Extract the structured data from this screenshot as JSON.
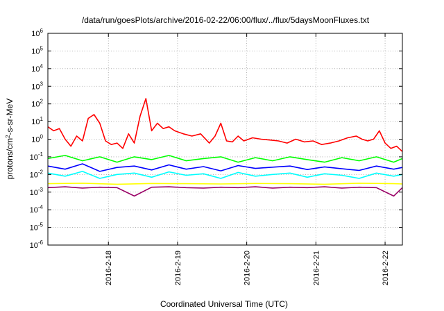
{
  "chart_data": {
    "type": "line",
    "title": "/data/run/goesPlots/archive/2016-02-22/06:00/flux/../flux/5daysMoonFluxes.txt",
    "xlabel": "Coordinated Universal Time (UTC)",
    "ylabel_parts": [
      "protons/cm",
      "2",
      "-s-sr-MeV"
    ],
    "y_scale": "log",
    "ylim": [
      1e-06,
      1000000.0
    ],
    "y_ticks": [
      {
        "base": "10",
        "exp": "-6",
        "value": 1e-06
      },
      {
        "base": "10",
        "exp": "-5",
        "value": 1e-05
      },
      {
        "base": "10",
        "exp": "-4",
        "value": 0.0001
      },
      {
        "base": "10",
        "exp": "-3",
        "value": 0.001
      },
      {
        "base": "10",
        "exp": "-2",
        "value": 0.01
      },
      {
        "base": "10",
        "exp": "-1",
        "value": 0.1
      },
      {
        "base": "10",
        "exp": "0",
        "value": 1
      },
      {
        "base": "10",
        "exp": "1",
        "value": 10
      },
      {
        "base": "10",
        "exp": "2",
        "value": 100
      },
      {
        "base": "10",
        "exp": "3",
        "value": 1000
      },
      {
        "base": "10",
        "exp": "4",
        "value": 10000
      },
      {
        "base": "10",
        "exp": "5",
        "value": 100000
      },
      {
        "base": "10",
        "exp": "6",
        "value": 1000000
      }
    ],
    "x_scale": "time",
    "xlim": [
      "2016-02-17 03:00",
      "2016-02-22 06:00"
    ],
    "x_ticks": [
      "2016-2-18",
      "2016-2-19",
      "2016-2-20",
      "2016-2-21",
      "2016-2-22"
    ],
    "x_tick_dates": [
      "2016-02-18",
      "2016-02-19",
      "2016-02-20",
      "2016-02-21",
      "2016-02-22"
    ],
    "grid": true,
    "series": [
      {
        "color": "#ff0000",
        "x": [
          "2016-02-17 03:00",
          "2016-02-17 05:00",
          "2016-02-17 07:00",
          "2016-02-17 09:00",
          "2016-02-17 11:00",
          "2016-02-17 13:00",
          "2016-02-17 15:00",
          "2016-02-17 17:00",
          "2016-02-17 19:00",
          "2016-02-17 21:00",
          "2016-02-17 23:00",
          "2016-02-18 01:00",
          "2016-02-18 03:00",
          "2016-02-18 05:00",
          "2016-02-18 07:00",
          "2016-02-18 09:00",
          "2016-02-18 11:00",
          "2016-02-18 13:00",
          "2016-02-18 15:00",
          "2016-02-18 17:00",
          "2016-02-18 19:00",
          "2016-02-18 21:00",
          "2016-02-18 23:00",
          "2016-02-19 02:00",
          "2016-02-19 05:00",
          "2016-02-19 08:00",
          "2016-02-19 11:00",
          "2016-02-19 13:00",
          "2016-02-19 15:00",
          "2016-02-19 17:00",
          "2016-02-19 19:00",
          "2016-02-19 21:00",
          "2016-02-19 23:00",
          "2016-02-20 02:00",
          "2016-02-20 05:00",
          "2016-02-20 08:00",
          "2016-02-20 11:00",
          "2016-02-20 14:00",
          "2016-02-20 17:00",
          "2016-02-20 20:00",
          "2016-02-20 23:00",
          "2016-02-21 02:00",
          "2016-02-21 05:00",
          "2016-02-21 08:00",
          "2016-02-21 11:00",
          "2016-02-21 14:00",
          "2016-02-21 16:00",
          "2016-02-21 18:00",
          "2016-02-21 20:00",
          "2016-02-21 22:00",
          "2016-02-22 00:00",
          "2016-02-22 02:00",
          "2016-02-22 04:00",
          "2016-02-22 06:00"
        ],
        "values": [
          5,
          3,
          4,
          1,
          0.4,
          1.5,
          0.8,
          15,
          25,
          8,
          0.8,
          0.5,
          0.6,
          0.3,
          2,
          0.6,
          20,
          200,
          3,
          8,
          4,
          5,
          3,
          2,
          1.5,
          2,
          0.6,
          1.5,
          8,
          0.8,
          0.7,
          1.5,
          0.8,
          1.2,
          1,
          0.9,
          0.8,
          0.6,
          1,
          0.7,
          0.8,
          0.5,
          0.6,
          0.8,
          1.2,
          1.5,
          1,
          0.8,
          1,
          3,
          0.6,
          0.3,
          0.4,
          0.2
        ]
      },
      {
        "color": "#00ff00",
        "x": [
          "2016-02-17 03:00",
          "2016-02-17 09:00",
          "2016-02-17 15:00",
          "2016-02-17 21:00",
          "2016-02-18 03:00",
          "2016-02-18 09:00",
          "2016-02-18 15:00",
          "2016-02-18 21:00",
          "2016-02-19 03:00",
          "2016-02-19 09:00",
          "2016-02-19 15:00",
          "2016-02-19 21:00",
          "2016-02-20 03:00",
          "2016-02-20 09:00",
          "2016-02-20 15:00",
          "2016-02-20 21:00",
          "2016-02-21 03:00",
          "2016-02-21 09:00",
          "2016-02-21 15:00",
          "2016-02-21 21:00",
          "2016-02-22 03:00",
          "2016-02-22 06:00"
        ],
        "values": [
          0.08,
          0.12,
          0.06,
          0.1,
          0.05,
          0.1,
          0.07,
          0.12,
          0.06,
          0.08,
          0.1,
          0.05,
          0.09,
          0.06,
          0.1,
          0.07,
          0.05,
          0.09,
          0.06,
          0.1,
          0.05,
          0.08
        ]
      },
      {
        "color": "#00ffff",
        "x": [
          "2016-02-17 03:00",
          "2016-02-17 09:00",
          "2016-02-17 15:00",
          "2016-02-17 21:00",
          "2016-02-18 03:00",
          "2016-02-18 09:00",
          "2016-02-18 15:00",
          "2016-02-18 21:00",
          "2016-02-19 03:00",
          "2016-02-19 09:00",
          "2016-02-19 15:00",
          "2016-02-19 21:00",
          "2016-02-20 03:00",
          "2016-02-20 09:00",
          "2016-02-20 15:00",
          "2016-02-20 21:00",
          "2016-02-21 03:00",
          "2016-02-21 09:00",
          "2016-02-21 15:00",
          "2016-02-21 21:00",
          "2016-02-22 03:00",
          "2016-02-22 06:00"
        ],
        "values": [
          0.012,
          0.008,
          0.015,
          0.006,
          0.01,
          0.012,
          0.007,
          0.014,
          0.009,
          0.011,
          0.006,
          0.013,
          0.008,
          0.01,
          0.012,
          0.007,
          0.011,
          0.009,
          0.006,
          0.012,
          0.008,
          0.01
        ]
      },
      {
        "color": "#0000ff",
        "x": [
          "2016-02-17 03:00",
          "2016-02-17 09:00",
          "2016-02-17 15:00",
          "2016-02-17 21:00",
          "2016-02-18 03:00",
          "2016-02-18 09:00",
          "2016-02-18 15:00",
          "2016-02-18 21:00",
          "2016-02-19 03:00",
          "2016-02-19 09:00",
          "2016-02-19 15:00",
          "2016-02-19 21:00",
          "2016-02-20 03:00",
          "2016-02-20 09:00",
          "2016-02-20 15:00",
          "2016-02-20 21:00",
          "2016-02-21 03:00",
          "2016-02-21 09:00",
          "2016-02-21 15:00",
          "2016-02-21 21:00",
          "2016-02-22 03:00",
          "2016-02-22 06:00"
        ],
        "values": [
          0.03,
          0.02,
          0.04,
          0.015,
          0.025,
          0.03,
          0.018,
          0.035,
          0.02,
          0.028,
          0.016,
          0.032,
          0.022,
          0.026,
          0.03,
          0.019,
          0.027,
          0.021,
          0.017,
          0.03,
          0.02,
          0.025
        ]
      },
      {
        "color": "#ffff00",
        "x": [
          "2016-02-17 03:00",
          "2016-02-17 15:00",
          "2016-02-18 03:00",
          "2016-02-18 15:00",
          "2016-02-19 03:00",
          "2016-02-19 15:00",
          "2016-02-20 03:00",
          "2016-02-20 15:00",
          "2016-02-21 03:00",
          "2016-02-21 15:00",
          "2016-02-22 03:00",
          "2016-02-22 06:00"
        ],
        "values": [
          0.003,
          0.0032,
          0.0028,
          0.0031,
          0.003,
          0.0029,
          0.0031,
          0.003,
          0.0028,
          0.0032,
          0.003,
          0.0029
        ]
      },
      {
        "color": "#990066",
        "x": [
          "2016-02-17 03:00",
          "2016-02-17 09:00",
          "2016-02-17 15:00",
          "2016-02-17 21:00",
          "2016-02-18 03:00",
          "2016-02-18 09:00",
          "2016-02-18 15:00",
          "2016-02-18 21:00",
          "2016-02-19 03:00",
          "2016-02-19 09:00",
          "2016-02-19 15:00",
          "2016-02-19 21:00",
          "2016-02-20 03:00",
          "2016-02-20 09:00",
          "2016-02-20 15:00",
          "2016-02-20 21:00",
          "2016-02-21 03:00",
          "2016-02-21 09:00",
          "2016-02-21 15:00",
          "2016-02-21 21:00",
          "2016-02-22 03:00",
          "2016-02-22 06:00"
        ],
        "values": [
          0.0018,
          0.002,
          0.0017,
          0.0019,
          0.0018,
          0.0006,
          0.0019,
          0.002,
          0.0018,
          0.0017,
          0.0019,
          0.0018,
          0.002,
          0.0017,
          0.0019,
          0.0018,
          0.002,
          0.0017,
          0.0019,
          0.0018,
          0.0006,
          0.0018
        ]
      }
    ]
  }
}
